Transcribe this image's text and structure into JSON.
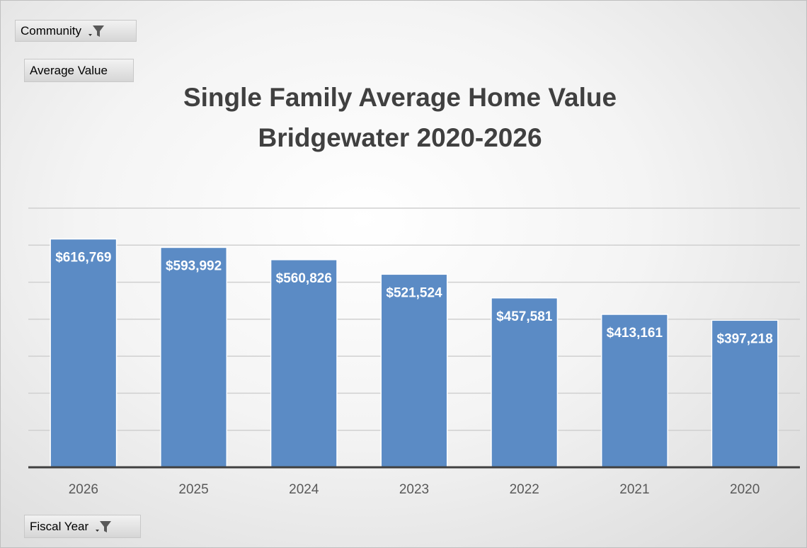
{
  "chart_data": {
    "type": "bar",
    "title": "Single Family Average Home Value",
    "subtitle": "Bridgewater 2020-2026",
    "categories": [
      "2026",
      "2025",
      "2024",
      "2023",
      "2022",
      "2021",
      "2020"
    ],
    "values": [
      616769,
      593992,
      560826,
      521524,
      457581,
      413161,
      397218
    ],
    "value_labels": [
      "$616,769",
      "$593,992",
      "$560,826",
      "$521,524",
      "$457,581",
      "$413,161",
      "$397,218"
    ],
    "color": "#5b8bc5",
    "ylim": [
      0,
      700000
    ],
    "yticks": [
      0,
      100000,
      200000,
      300000,
      400000,
      500000,
      600000,
      700000
    ],
    "grid": true
  },
  "field_buttons": {
    "filter": "Community",
    "values": "Average Value",
    "axis": "Fiscal Year"
  }
}
